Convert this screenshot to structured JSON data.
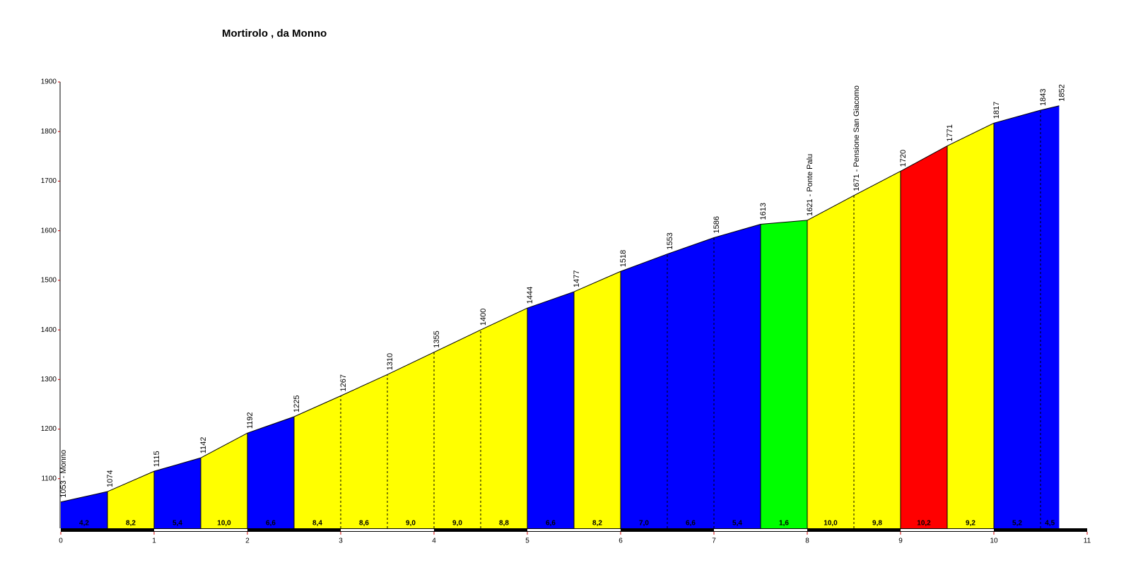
{
  "chart_data": {
    "type": "area",
    "title": "Mortirolo , da Monno",
    "x": [
      0,
      0.5,
      1,
      1.5,
      2,
      2.5,
      3,
      3.5,
      4,
      4.5,
      5,
      5.5,
      6,
      6.5,
      7,
      7.5,
      8,
      8.5,
      9,
      9.5,
      10,
      10.5,
      10.7
    ],
    "xlim": [
      0,
      11
    ],
    "xticks": [
      0,
      1,
      2,
      3,
      4,
      5,
      6,
      7,
      8,
      9,
      10,
      11
    ],
    "ylim": [
      1000,
      1900
    ],
    "yticks": [
      1100,
      1200,
      1300,
      1400,
      1500,
      1600,
      1700,
      1800,
      1900
    ],
    "series": [
      {
        "values": [
          1053,
          1074,
          1115,
          1142,
          1192,
          1225,
          1267,
          1310,
          1355,
          1400,
          1444,
          1477,
          1518,
          1553,
          1586,
          1613,
          1621,
          1671,
          1720,
          1771,
          1817,
          1843,
          1852
        ],
        "value_labels": [
          "1053 - Monno",
          "1074",
          "1115",
          "1142",
          "1192",
          "1225",
          "1267",
          "1310",
          "1355",
          "1400",
          "1444",
          "1477",
          "1518",
          "1553",
          "1586",
          "1613",
          "1621 - Ponte Palu",
          "1671 - Pensione San Giacomo",
          "1720",
          "1771",
          "1817",
          "1843",
          "1852"
        ],
        "colors": [
          "#0000ff",
          "#ffff00",
          "#0000ff",
          "#ffff00",
          "#0000ff",
          "#ffff00",
          "#ffff00",
          "#ffff00",
          "#ffff00",
          "#ffff00",
          "#0000ff",
          "#ffff00",
          "#0000ff",
          "#0000ff",
          "#0000ff",
          "#00ff00",
          "#ffff00",
          "#ffff00",
          "#ff0000",
          "#ffff00",
          "#0000ff",
          "#0000ff"
        ]
      }
    ],
    "gradients": {
      "values": [
        4.2,
        8.2,
        5.4,
        10.0,
        6.6,
        8.4,
        8.6,
        9.0,
        9.0,
        8.8,
        6.6,
        8.2,
        7.0,
        6.6,
        5.4,
        1.6,
        10.0,
        9.8,
        10.2,
        9.2,
        5.2,
        4.5
      ],
      "value_labels": [
        "4,2",
        "8,2",
        "5,4",
        "10,0",
        "6,6",
        "8,4",
        "8,6",
        "9,0",
        "9,0",
        "8,8",
        "6,6",
        "8,2",
        "7,0",
        "6,6",
        "5,4",
        "1,6",
        "10,0",
        "9,8",
        "10,2",
        "9,2",
        "5,2",
        "4,5"
      ]
    }
  }
}
